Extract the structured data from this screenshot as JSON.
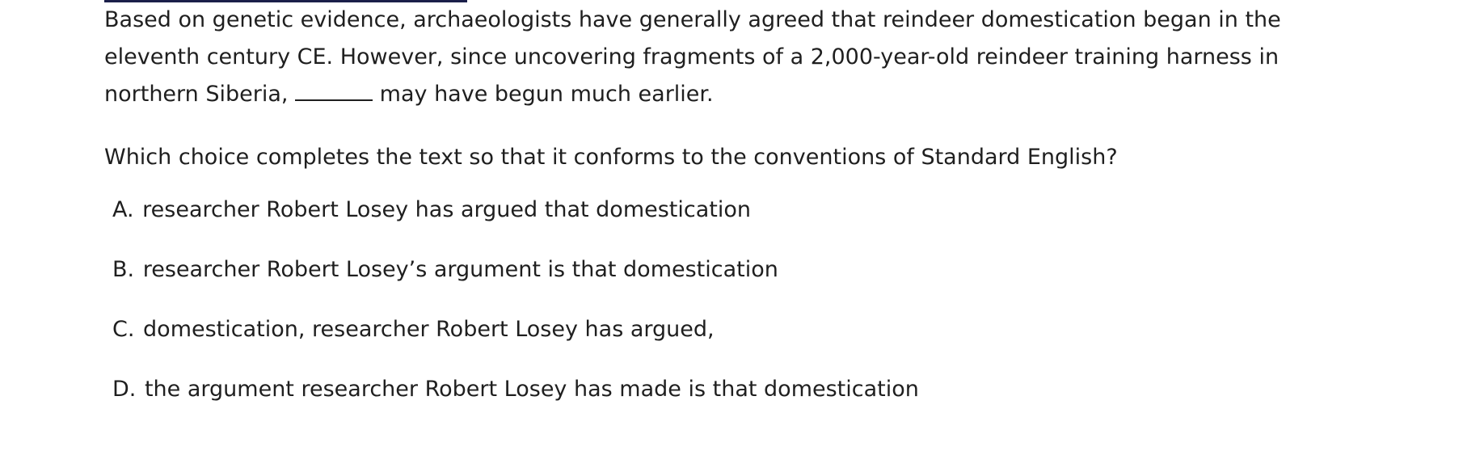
{
  "passage": {
    "text_before": "Based on genetic evidence, archaeologists have generally agreed that reindeer domestication began in the eleventh century CE. However, since uncovering fragments of a 2,000-year-old reindeer training harness in northern Siberia, ",
    "text_after": " may have begun much earlier."
  },
  "question": {
    "prompt": "Which choice completes the text so that it conforms to the conventions of Standard English?"
  },
  "choices": [
    {
      "letter": "A.",
      "text": "researcher Robert Losey has argued that domestication"
    },
    {
      "letter": "B.",
      "text": "researcher Robert Losey’s argument is that domestication"
    },
    {
      "letter": "C.",
      "text": "domestication, researcher Robert Losey has argued,"
    },
    {
      "letter": "D.",
      "text": "the argument researcher Robert Losey has made is that domestication"
    }
  ],
  "colors": {
    "text": "#1f1f1f",
    "top_rule": "#1b1f4a",
    "background": "#ffffff"
  }
}
